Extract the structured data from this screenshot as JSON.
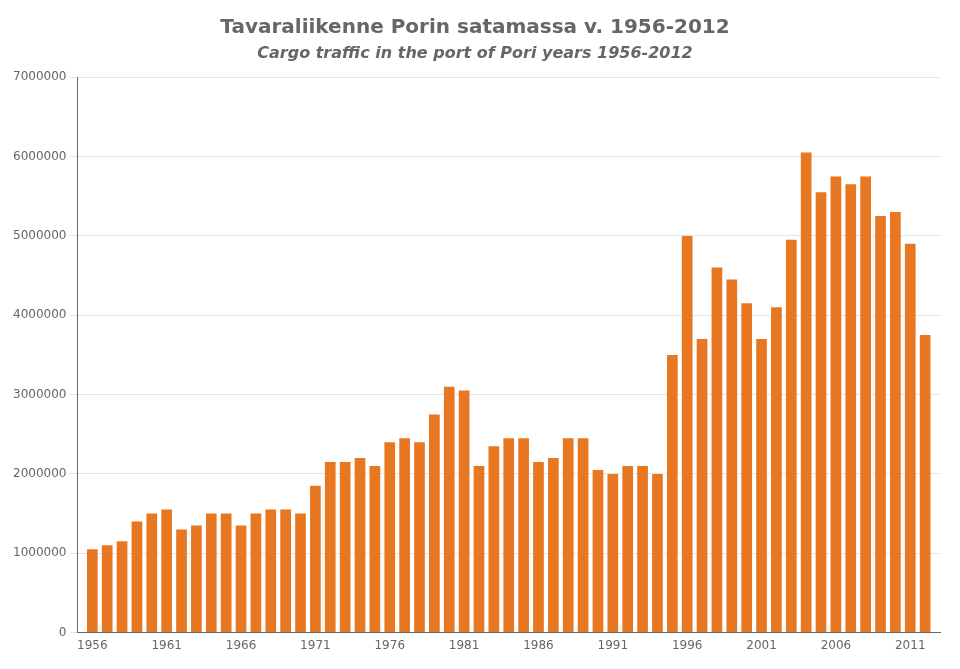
{
  "chart_data": {
    "type": "bar",
    "title": "Tavaraliikenne Porin satamassa v. 1956-2012",
    "subtitle": "Cargo traffic in the port of Pori years 1956-2012",
    "x": [
      1956,
      1957,
      1958,
      1959,
      1960,
      1961,
      1962,
      1963,
      1964,
      1965,
      1966,
      1967,
      1968,
      1969,
      1970,
      1971,
      1972,
      1973,
      1974,
      1975,
      1976,
      1977,
      1978,
      1979,
      1980,
      1981,
      1982,
      1983,
      1984,
      1985,
      1986,
      1987,
      1988,
      1989,
      1990,
      1991,
      1992,
      1993,
      1994,
      1995,
      1996,
      1997,
      1998,
      1999,
      2000,
      2001,
      2002,
      2003,
      2004,
      2005,
      2006,
      2007,
      2008,
      2009,
      2010,
      2011,
      2012
    ],
    "values": [
      1050000,
      1100000,
      1150000,
      1400000,
      1500000,
      1550000,
      1300000,
      1350000,
      1500000,
      1500000,
      1350000,
      1500000,
      1550000,
      1550000,
      1500000,
      1850000,
      2150000,
      2150000,
      2200000,
      2100000,
      2400000,
      2450000,
      2400000,
      2750000,
      3100000,
      3050000,
      2100000,
      2350000,
      2450000,
      2450000,
      2150000,
      2200000,
      2450000,
      2450000,
      2050000,
      2000000,
      2100000,
      2100000,
      2000000,
      3500000,
      5000000,
      3700000,
      4600000,
      4450000,
      4150000,
      3700000,
      4100000,
      4950000,
      6050000,
      5550000,
      5750000,
      5650000,
      5750000,
      5250000,
      5300000,
      4900000,
      3750000
    ],
    "color": "#e87722",
    "xlim": [
      1955,
      2013
    ],
    "xticks": [
      1956,
      1961,
      1966,
      1971,
      1976,
      1981,
      1986,
      1991,
      1996,
      2001,
      2006,
      2011
    ],
    "ylim": [
      0,
      7000000
    ],
    "yticks": [
      0,
      1000000,
      2000000,
      3000000,
      4000000,
      5000000,
      6000000,
      7000000
    ],
    "grid": true
  }
}
